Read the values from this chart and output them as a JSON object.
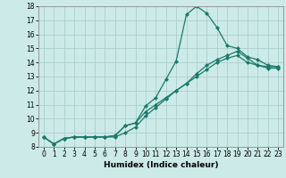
{
  "xlabel": "Humidex (Indice chaleur)",
  "bg_color": "#cceae8",
  "line_color": "#1a7a6a",
  "grid_color": "#aacfcc",
  "xlim": [
    -0.5,
    23.5
  ],
  "ylim": [
    8,
    18
  ],
  "xticks": [
    0,
    1,
    2,
    3,
    4,
    5,
    6,
    7,
    8,
    9,
    10,
    11,
    12,
    13,
    14,
    15,
    16,
    17,
    18,
    19,
    20,
    21,
    22,
    23
  ],
  "yticks": [
    8,
    9,
    10,
    11,
    12,
    13,
    14,
    15,
    16,
    17,
    18
  ],
  "line1_x": [
    0,
    1,
    2,
    3,
    4,
    5,
    6,
    7,
    8,
    9,
    10,
    11,
    12,
    13,
    14,
    15,
    16,
    17,
    18,
    19,
    20,
    21,
    22,
    23
  ],
  "line1_y": [
    8.7,
    8.2,
    8.6,
    8.7,
    8.7,
    8.7,
    8.7,
    8.8,
    9.5,
    9.7,
    10.9,
    11.5,
    12.8,
    14.1,
    17.4,
    18.0,
    17.5,
    16.5,
    15.2,
    15.0,
    14.4,
    14.2,
    13.8,
    13.7
  ],
  "line2_x": [
    0,
    1,
    2,
    3,
    4,
    5,
    6,
    7,
    8,
    9,
    10,
    11,
    12,
    13,
    14,
    15,
    16,
    17,
    18,
    19,
    20,
    21,
    22,
    23
  ],
  "line2_y": [
    8.7,
    8.2,
    8.6,
    8.7,
    8.7,
    8.7,
    8.7,
    8.8,
    9.5,
    9.7,
    10.5,
    11.0,
    11.5,
    12.0,
    12.5,
    13.2,
    13.8,
    14.2,
    14.5,
    14.8,
    14.3,
    13.8,
    13.7,
    13.7
  ],
  "line3_x": [
    0,
    1,
    2,
    3,
    4,
    5,
    6,
    7,
    8,
    9,
    10,
    11,
    12,
    13,
    14,
    15,
    16,
    17,
    18,
    19,
    20,
    21,
    22,
    23
  ],
  "line3_y": [
    8.7,
    8.2,
    8.6,
    8.7,
    8.7,
    8.7,
    8.7,
    8.7,
    9.0,
    9.4,
    10.2,
    10.8,
    11.4,
    12.0,
    12.5,
    13.0,
    13.5,
    14.0,
    14.3,
    14.5,
    14.0,
    13.8,
    13.6,
    13.6
  ],
  "marker": "D",
  "markersize": 2.0,
  "linewidth": 0.9,
  "tick_fontsize": 5.5,
  "xlabel_fontsize": 6.5
}
